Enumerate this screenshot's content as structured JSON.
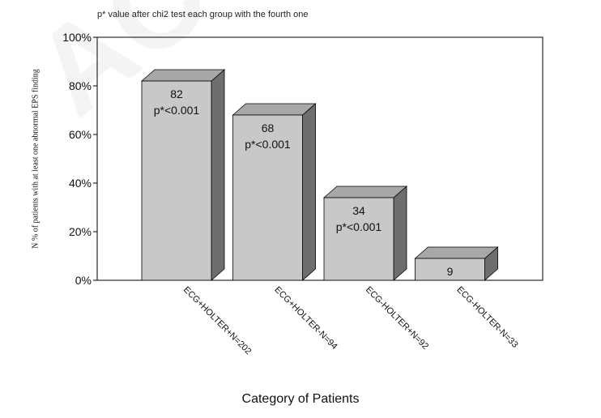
{
  "chart_data": {
    "type": "bar",
    "subtitle": "p* value after chi2 test each group with the fourth one",
    "xlabel": "Category of Patients",
    "ylabel": "N % of patients with at least one abnormal EPS finding",
    "categories": [
      "ECG+HOLTER+N=202",
      "ECG+HOLTER-N=94",
      "ECG-HOLTER+N=92",
      "ECG-HOLTER-N=33"
    ],
    "values": [
      82,
      68,
      34,
      9
    ],
    "value_labels": [
      "82",
      "68",
      "34",
      "9"
    ],
    "pvalue_labels": [
      "p*<0.001",
      "p*<0.001",
      "p*<0.001",
      ""
    ],
    "yticks": [
      "0%",
      "20%",
      "40%",
      "60%",
      "80%",
      "100%"
    ],
    "ylim": [
      0,
      100
    ],
    "bar_style": "3d",
    "grid": false,
    "legend": "none",
    "colors": {
      "bar_front": "#c8c8c8",
      "bar_top": "#a8a8a8",
      "bar_side": "#6e6e6e",
      "axis": "#000000"
    }
  }
}
